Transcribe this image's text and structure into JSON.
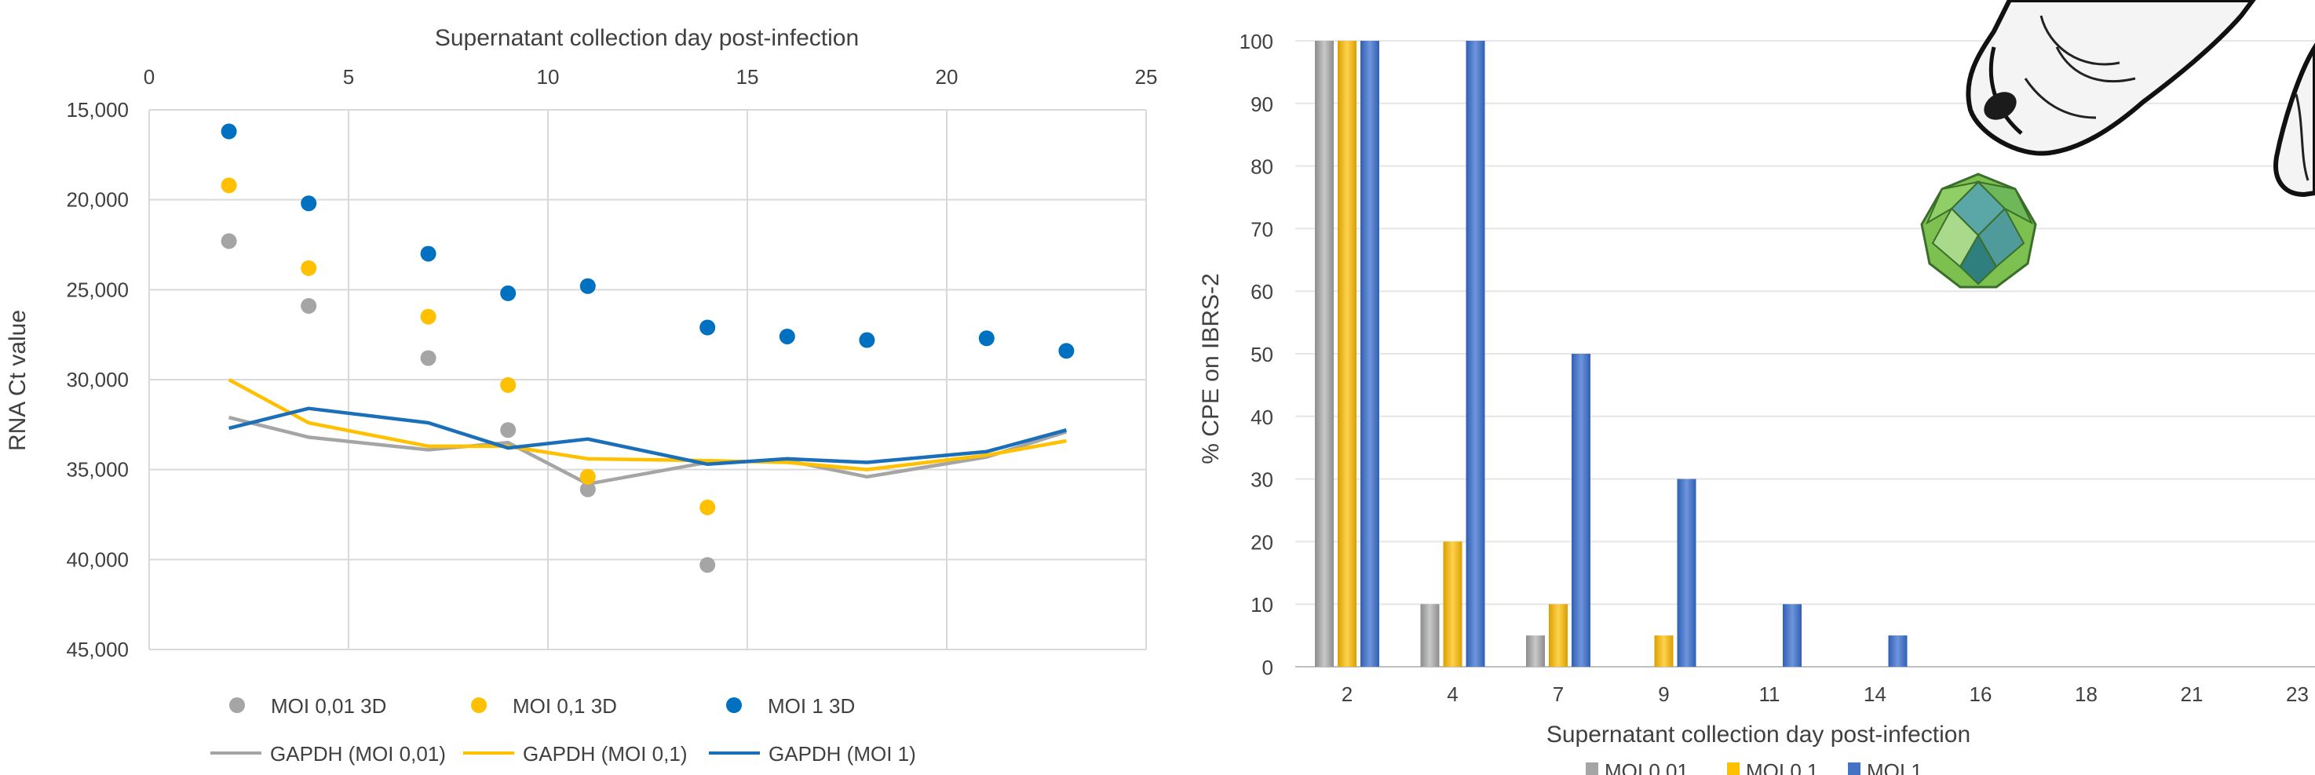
{
  "chart_data": [
    {
      "type": "scatter",
      "xlabel": "Supernatant collection day post-infection",
      "ylabel": "RNA Ct value",
      "xlim": [
        0,
        25
      ],
      "ylim": [
        15000,
        45000
      ],
      "y_inverted": true,
      "x_axis_position": "top",
      "xticks": [
        "0",
        "5",
        "10",
        "15",
        "20",
        "25"
      ],
      "yticks": [
        "15,000",
        "20,000",
        "25,000",
        "30,000",
        "35,000",
        "40,000",
        "45,000"
      ],
      "grid": true,
      "legend_position": "bottom",
      "series": [
        {
          "name": "MOI 0,01 3D",
          "kind": "scatter",
          "color": "#a5a5a5",
          "x": [
            2,
            4,
            7,
            9,
            11,
            14
          ],
          "y": [
            22300,
            25900,
            28800,
            32800,
            36100,
            40300
          ]
        },
        {
          "name": "MOI 0,1 3D",
          "kind": "scatter",
          "color": "#ffc000",
          "x": [
            2,
            4,
            7,
            9,
            11,
            14
          ],
          "y": [
            19200,
            23800,
            26500,
            30300,
            35400,
            37100
          ]
        },
        {
          "name": "MOI 1 3D",
          "kind": "scatter",
          "color": "#0070c0",
          "x": [
            2,
            4,
            7,
            9,
            11,
            14,
            16,
            18,
            21,
            23
          ],
          "y": [
            16200,
            20200,
            23000,
            25200,
            24800,
            27100,
            27600,
            27800,
            27700,
            28400
          ]
        },
        {
          "name": "GAPDH (MOI 0,01)",
          "kind": "line",
          "color": "#a5a5a5",
          "x": [
            2,
            4,
            7,
            9,
            11,
            14,
            16,
            18,
            21,
            23
          ],
          "y": [
            32100,
            33200,
            33900,
            33500,
            35800,
            34600,
            34500,
            35400,
            34300,
            32900
          ]
        },
        {
          "name": "GAPDH (MOI 0,1)",
          "kind": "line",
          "color": "#ffc000",
          "x": [
            2,
            4,
            7,
            9,
            11,
            14,
            16,
            18,
            21,
            23
          ],
          "y": [
            30000,
            32400,
            33700,
            33700,
            34400,
            34500,
            34600,
            35000,
            34200,
            33400
          ]
        },
        {
          "name": "GAPDH (MOI 1)",
          "kind": "line",
          "color": "#1a6fb8",
          "x": [
            2,
            4,
            7,
            9,
            11,
            14,
            16,
            18,
            21,
            23
          ],
          "y": [
            32700,
            31600,
            32400,
            33800,
            33300,
            34700,
            34400,
            34600,
            34000,
            32800
          ]
        }
      ]
    },
    {
      "type": "bar",
      "xlabel": "Supernatant collection day post-infection",
      "ylabel": "% CPE on IBRS-2",
      "ylim": [
        0,
        100
      ],
      "yticks": [
        "0",
        "10",
        "20",
        "30",
        "40",
        "50",
        "60",
        "70",
        "80",
        "90",
        "100"
      ],
      "categories": [
        "2",
        "4",
        "7",
        "9",
        "11",
        "14",
        "16",
        "18",
        "21",
        "23"
      ],
      "grid": true,
      "legend_position": "bottom",
      "series": [
        {
          "name": "MOI 0,01",
          "color": "#a5a5a5",
          "values": [
            100,
            10,
            5,
            0,
            0,
            0,
            0,
            0,
            0,
            0
          ]
        },
        {
          "name": "MOI 0,1",
          "color": "#ffc000",
          "values": [
            100,
            20,
            10,
            5,
            0,
            0,
            0,
            0,
            0,
            0
          ]
        },
        {
          "name": "MOI 1",
          "color": "#4472c4",
          "values": [
            100,
            100,
            50,
            30,
            10,
            5,
            0,
            0,
            0,
            0
          ]
        }
      ]
    }
  ]
}
